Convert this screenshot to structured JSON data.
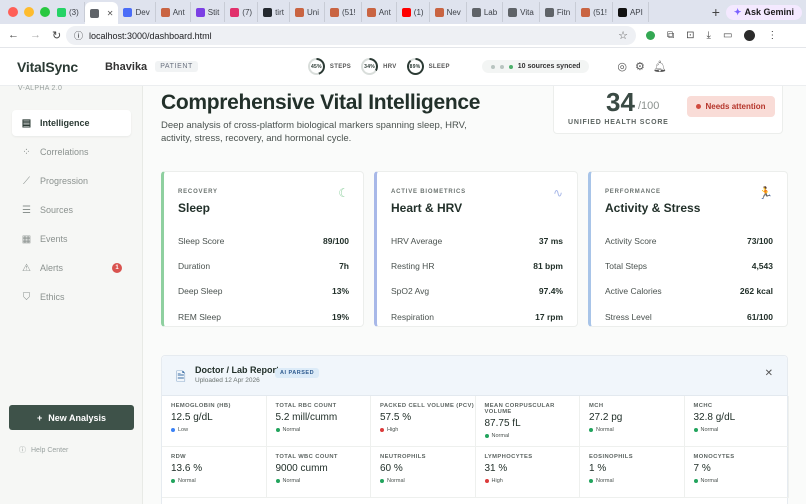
{
  "browser": {
    "tabs": [
      {
        "label": "(3)",
        "color": "#25d366"
      },
      {
        "label": "",
        "color": "#5f6368",
        "active": true
      },
      {
        "label": "Dev",
        "color": "#4a6cf7"
      },
      {
        "label": "Ant",
        "color": "#c96442"
      },
      {
        "label": "Stit",
        "color": "#7b3fe4"
      },
      {
        "label": "(7)",
        "color": "#e1306c"
      },
      {
        "label": "tirt",
        "color": "#24292f"
      },
      {
        "label": "Uni",
        "color": "#c96442"
      },
      {
        "label": "(51!",
        "color": "#c96442"
      },
      {
        "label": "Ant",
        "color": "#c96442"
      },
      {
        "label": "(1)",
        "color": "#ff0000"
      },
      {
        "label": "Nev",
        "color": "#c96442"
      },
      {
        "label": "Lab",
        "color": "#5f6368"
      },
      {
        "label": "Vita",
        "color": "#5f6368"
      },
      {
        "label": "Fitn",
        "color": "#5f6368"
      },
      {
        "label": "(51!",
        "color": "#c96442"
      },
      {
        "label": "API",
        "color": "#111111"
      }
    ],
    "gemini_label": "Ask Gemini",
    "url": "localhost:3000/dashboard.html"
  },
  "header": {
    "logo": "VitalSync",
    "patient_name": "Bhavika",
    "patient_badge": "PATIENT",
    "metrics": [
      {
        "value": "45%",
        "label": "STEPS",
        "pct": 45
      },
      {
        "value": "34%",
        "label": "HRV",
        "pct": 34
      },
      {
        "value": "89%",
        "label": "SLEEP",
        "pct": 89
      }
    ],
    "synced": "10 sources synced"
  },
  "sidebar": {
    "version": "V-ALPHA 2.0",
    "items": [
      {
        "label": "Intelligence",
        "icon": "document-icon",
        "glyph": "▤"
      },
      {
        "label": "Correlations",
        "icon": "cluster-icon",
        "glyph": "⁘"
      },
      {
        "label": "Progression",
        "icon": "trend-icon",
        "glyph": "⟋"
      },
      {
        "label": "Sources",
        "icon": "database-icon",
        "glyph": "☰"
      },
      {
        "label": "Events",
        "icon": "calendar-icon",
        "glyph": "▦"
      },
      {
        "label": "Alerts",
        "icon": "alert-icon",
        "glyph": "⚠",
        "badge": "1"
      },
      {
        "label": "Ethics",
        "icon": "shield-icon",
        "glyph": "⛉"
      }
    ],
    "new_analysis": "New Analysis",
    "help": "Help Center"
  },
  "main": {
    "title": "Comprehensive Vital Intelligence",
    "subtitle": "Deep analysis of cross-platform biological markers spanning sleep, HRV, activity, stress, recovery, and hormonal cycle.",
    "score": {
      "value": "34",
      "max": "/100",
      "label": "UNIFIED HEALTH SCORE",
      "status": "Needs attention"
    },
    "cards": [
      {
        "kicker": "RECOVERY",
        "title": "Sleep",
        "icon": "moon-icon",
        "glyph": "☾",
        "accent": "#8fd0a0",
        "rows": [
          {
            "label": "Sleep Score",
            "value": "89/100"
          },
          {
            "label": "Duration",
            "value": "7h"
          },
          {
            "label": "Deep Sleep",
            "value": "13%"
          },
          {
            "label": "REM Sleep",
            "value": "19%"
          }
        ]
      },
      {
        "kicker": "ACTIVE BIOMETRICS",
        "title": "Heart & HRV",
        "icon": "pulse-icon",
        "glyph": "∿",
        "accent": "#a8b8e8",
        "rows": [
          {
            "label": "HRV Average",
            "value": "37 ms"
          },
          {
            "label": "Resting HR",
            "value": "81 bpm"
          },
          {
            "label": "SpO2 Avg",
            "value": "97.4%"
          },
          {
            "label": "Respiration",
            "value": "17 rpm"
          }
        ]
      },
      {
        "kicker": "PERFORMANCE",
        "title": "Activity & Stress",
        "icon": "runner-icon",
        "glyph": "🏃",
        "accent": "#a8c4e8",
        "rows": [
          {
            "label": "Activity Score",
            "value": "73/100"
          },
          {
            "label": "Total Steps",
            "value": "4,543"
          },
          {
            "label": "Active Calories",
            "value": "262 kcal"
          },
          {
            "label": "Stress Level",
            "value": "61/100"
          }
        ]
      }
    ],
    "report": {
      "title": "Doctor / Lab Report",
      "date": "Uploaded 12 Apr 2026",
      "badge": "AI PARSED",
      "labs": [
        {
          "name": "HEMOGLOBIN (HB)",
          "value": "12.5 g/dL",
          "status": "Low",
          "color": "#3b82f6"
        },
        {
          "name": "TOTAL RBC COUNT",
          "value": "5.2 mill/cumm",
          "status": "Normal",
          "color": "#22a45d"
        },
        {
          "name": "PACKED CELL VOLUME (PCV)",
          "value": "57.5 %",
          "status": "High",
          "color": "#dc3b3b"
        },
        {
          "name": "MEAN CORPUSCULAR VOLUME",
          "value": "87.75 fL",
          "status": "Normal",
          "color": "#22a45d"
        },
        {
          "name": "MCH",
          "value": "27.2 pg",
          "status": "Normal",
          "color": "#22a45d"
        },
        {
          "name": "MCHC",
          "value": "32.8 g/dL",
          "status": "Normal",
          "color": "#22a45d"
        },
        {
          "name": "RDW",
          "value": "13.6 %",
          "status": "Normal",
          "color": "#22a45d"
        },
        {
          "name": "TOTAL WBC COUNT",
          "value": "9000 cumm",
          "status": "Normal",
          "color": "#22a45d"
        },
        {
          "name": "NEUTROPHILS",
          "value": "60 %",
          "status": "Normal",
          "color": "#22a45d"
        },
        {
          "name": "LYMPHOCYTES",
          "value": "31 %",
          "status": "High",
          "color": "#dc3b3b"
        },
        {
          "name": "EOSINOPHILS",
          "value": "1 %",
          "status": "Normal",
          "color": "#22a45d"
        },
        {
          "name": "MONOCYTES",
          "value": "7 %",
          "status": "Normal",
          "color": "#22a45d"
        }
      ]
    }
  }
}
